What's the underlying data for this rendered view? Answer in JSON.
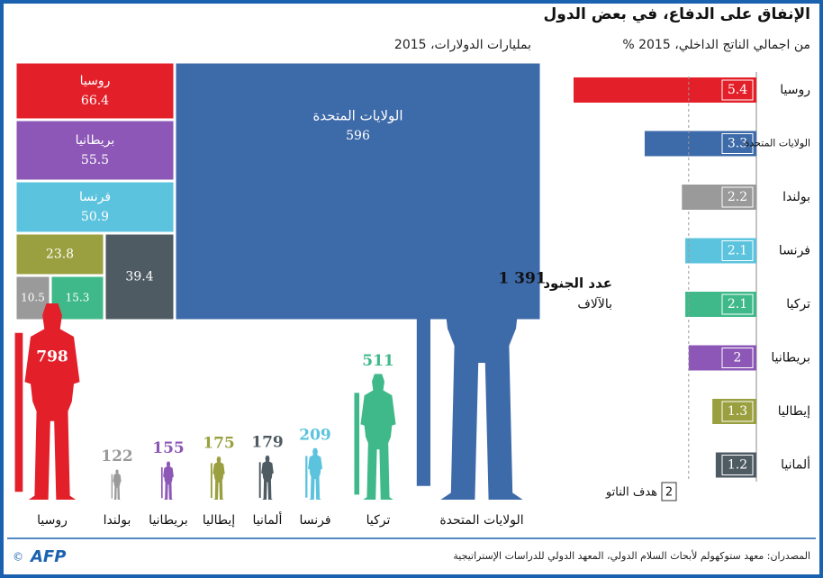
{
  "title": "الإنفاق على الدفاع، في بعض الدول",
  "chart_data": [
    {
      "type": "treemap",
      "subtitle": "بمليارات الدولارات، 2015",
      "categories": [
        "الولايات المتحدة",
        "روسيا",
        "بريطانيا",
        "فرنسا",
        null,
        null,
        null,
        null
      ],
      "values": [
        596,
        66.4,
        55.5,
        50.9,
        39.4,
        23.8,
        15.3,
        10.5
      ],
      "colors": [
        "#3d6aa8",
        "#e3202a",
        "#8c57b6",
        "#5bc3dd",
        "#4f5b63",
        "#9aa040",
        "#3fb98a",
        "#9a9a9a"
      ]
    },
    {
      "type": "bar",
      "subtitle": "% من اجمالي الناتج الداخلي، 2015",
      "categories": [
        "روسيا",
        "الولايات المتحدة",
        "بولندا",
        "فرنسا",
        "تركيا",
        "بريطانيا",
        "إيطاليا",
        "ألمانيا"
      ],
      "values": [
        5.4,
        3.3,
        2.2,
        2.1,
        2.1,
        2,
        1.3,
        1.2
      ],
      "colors": [
        "#e3202a",
        "#3d6aa8",
        "#9a9a9a",
        "#5bc3dd",
        "#3fb98a",
        "#8c57b6",
        "#9aa040",
        "#4f5b63"
      ],
      "reference": {
        "label": "هدف الناتو",
        "value": 2
      }
    },
    {
      "type": "pictogram",
      "title": "عدد الجنود",
      "subtitle": "بالآلاف",
      "categories": [
        "روسيا",
        "بولندا",
        "بريطانيا",
        "إيطاليا",
        "ألمانيا",
        "فرنسا",
        "تركيا",
        "الولايات المتحدة"
      ],
      "values": [
        798,
        122,
        155,
        175,
        179,
        209,
        511,
        1391
      ],
      "value_labels": [
        "798",
        "122",
        "155",
        "175",
        "179",
        "209",
        "511",
        "1 391"
      ],
      "colors": [
        "#e3202a",
        "#9a9a9a",
        "#8c57b6",
        "#9aa040",
        "#4f5b63",
        "#5bc3dd",
        "#3fb98a",
        "#3d6aa8"
      ]
    }
  ],
  "source": "المصدران: معهد ستوكهولم لأبحاث السلام الدولي، المعهد الدولي للدراسات الإستراتيجية",
  "logo": "AFP"
}
